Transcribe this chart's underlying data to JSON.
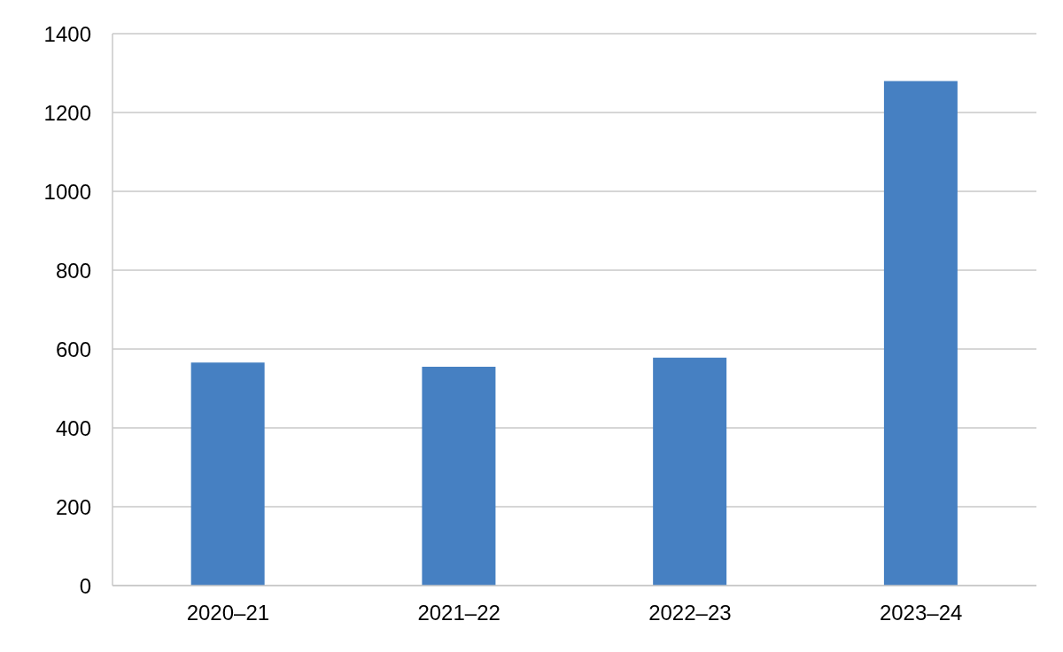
{
  "chart_data": {
    "type": "bar",
    "categories": [
      "2020–21",
      "2021–22",
      "2022–23",
      "2023–24"
    ],
    "values": [
      566,
      555,
      578,
      1280
    ],
    "color": "#4680c2",
    "ylim": [
      0,
      1400
    ],
    "yticks": [
      0,
      200,
      400,
      600,
      800,
      1000,
      1200,
      1400
    ],
    "grid": "y"
  }
}
